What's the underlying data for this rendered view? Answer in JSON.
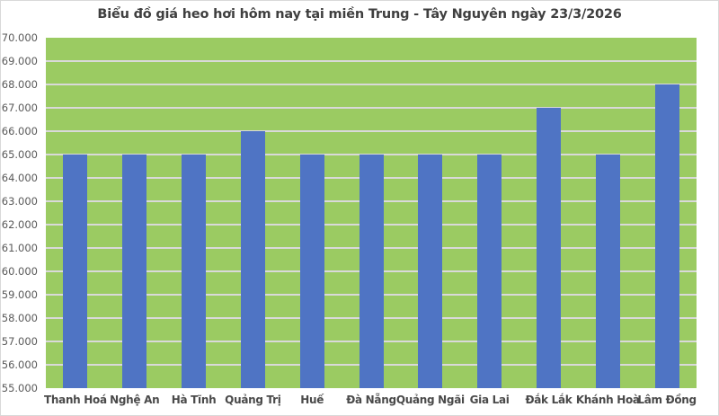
{
  "chart_data": {
    "type": "bar",
    "title": "Biểu đồ giá heo hơi hôm nay tại miền Trung - Tây Nguyên ngày 23/3/2026",
    "categories": [
      "Thanh Hoá",
      "Nghệ An",
      "Hà Tĩnh",
      "Quảng Trị",
      "Huế",
      "Đà Nẵng",
      "Quảng Ngãi",
      "Gia Lai",
      "Đắk Lắk",
      "Khánh Hoà",
      "Lâm Đồng"
    ],
    "values": [
      65000,
      65000,
      65000,
      66000,
      65000,
      65000,
      65000,
      65000,
      67000,
      65000,
      68000
    ],
    "xlabel": "",
    "ylabel": "",
    "ylim": [
      55000,
      70000
    ],
    "yticks": {
      "values": [
        55000,
        56000,
        57000,
        58000,
        59000,
        60000,
        61000,
        62000,
        63000,
        64000,
        65000,
        66000,
        67000,
        68000,
        69000,
        70000
      ],
      "labels": [
        "55.000",
        "56.000",
        "57.000",
        "58.000",
        "59.000",
        "60.000",
        "61.000",
        "62.000",
        "63.000",
        "64.000",
        "65.000",
        "66.000",
        "67.000",
        "68.000",
        "69.000",
        "70.000"
      ]
    },
    "grid": true,
    "legend_position": "none",
    "colors": {
      "bar": "#4f74c4",
      "plot_background": "#9bcb62",
      "gridline": "#d9d9d9",
      "title_text": "#3f3f3f",
      "axis_text": "#595959",
      "chart_border": "#d9d9d9"
    }
  }
}
